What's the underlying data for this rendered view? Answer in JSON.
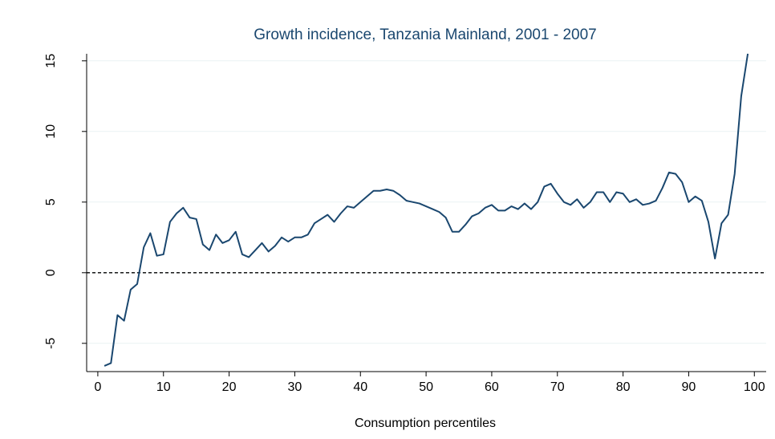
{
  "chart_data": {
    "type": "line",
    "title": "Growth incidence, Tanzania Mainland, 2001 - 2007",
    "x_label": "Consumption percentiles",
    "x": [
      1,
      2,
      3,
      4,
      5,
      6,
      7,
      8,
      9,
      10,
      11,
      12,
      13,
      14,
      15,
      16,
      17,
      18,
      19,
      20,
      21,
      22,
      23,
      24,
      25,
      26,
      27,
      28,
      29,
      30,
      31,
      32,
      33,
      34,
      35,
      36,
      37,
      38,
      39,
      40,
      41,
      42,
      43,
      44,
      45,
      46,
      47,
      48,
      49,
      50,
      51,
      52,
      53,
      54,
      55,
      56,
      57,
      58,
      59,
      60,
      61,
      62,
      63,
      64,
      65,
      66,
      67,
      68,
      69,
      70,
      71,
      72,
      73,
      74,
      75,
      76,
      77,
      78,
      79,
      80,
      81,
      82,
      83,
      84,
      85,
      86,
      87,
      88,
      89,
      90,
      91,
      92,
      93,
      94,
      95,
      96,
      97,
      98,
      99
    ],
    "values": [
      -6.6,
      -6.4,
      -3.0,
      -3.4,
      -1.2,
      -0.8,
      1.8,
      2.8,
      1.2,
      1.3,
      3.6,
      4.2,
      4.6,
      3.9,
      3.8,
      2.0,
      1.6,
      2.7,
      2.1,
      2.3,
      2.9,
      1.3,
      1.1,
      1.6,
      2.1,
      1.5,
      1.9,
      2.5,
      2.2,
      2.5,
      2.5,
      2.7,
      3.5,
      3.8,
      4.1,
      3.6,
      4.2,
      4.7,
      4.6,
      5.0,
      5.4,
      5.8,
      5.8,
      5.9,
      5.8,
      5.5,
      5.1,
      5.0,
      4.9,
      4.7,
      4.5,
      4.3,
      3.9,
      2.9,
      2.9,
      3.4,
      4.0,
      4.2,
      4.6,
      4.8,
      4.4,
      4.4,
      4.7,
      4.5,
      4.9,
      4.5,
      5.0,
      6.1,
      6.3,
      5.6,
      5.0,
      4.8,
      5.2,
      4.6,
      5.0,
      5.7,
      5.7,
      5.0,
      5.7,
      5.6,
      5.0,
      5.2,
      4.8,
      4.9,
      5.1,
      6.0,
      7.1,
      7.0,
      6.4,
      5.0,
      5.4,
      5.1,
      3.6,
      1.0,
      3.5,
      4.1,
      7.0,
      12.5,
      15.5
    ],
    "color": "#1a476f",
    "xlim": [
      -1.7,
      101.8
    ],
    "xticks": [
      0,
      10,
      20,
      30,
      40,
      50,
      60,
      70,
      80,
      90,
      100
    ],
    "ylim": [
      -7,
      15.5
    ],
    "yticks": [
      -5,
      0,
      5,
      10,
      15
    ],
    "yline": 0,
    "grid": true
  }
}
